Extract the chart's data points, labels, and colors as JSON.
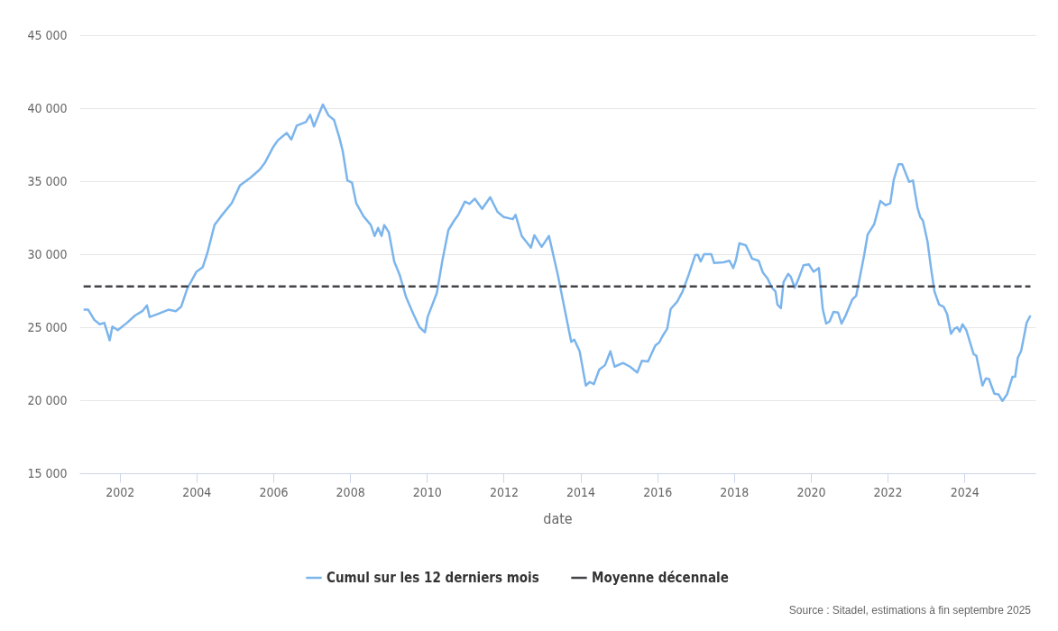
{
  "chart_data": {
    "type": "line",
    "xlabel": "date",
    "annotations": [
      "Source : Sitadel, estimations à fin septembre 2025"
    ],
    "xlim": [
      2000.95,
      2025.85
    ],
    "xticks": [
      2002,
      2004,
      2006,
      2008,
      2010,
      2012,
      2014,
      2016,
      2018,
      2020,
      2022,
      2024
    ],
    "ylim": [
      15000,
      45000
    ],
    "yticks": [
      {
        "value": 15000,
        "label": "15 000"
      },
      {
        "value": 20000,
        "label": "20 000"
      },
      {
        "value": 25000,
        "label": "25 000"
      },
      {
        "value": 30000,
        "label": "30 000"
      },
      {
        "value": 35000,
        "label": "35 000"
      },
      {
        "value": 40000,
        "label": "40 000"
      },
      {
        "value": 45000,
        "label": "45 000"
      }
    ],
    "grid": "y",
    "legend": "bottom",
    "series": [
      {
        "name": "Cumul sur les 12 derniers mois",
        "color": "#7cb5ec",
        "line_style": "solid",
        "x": [
          2001.06,
          2001.18,
          2001.34,
          2001.48,
          2001.6,
          2001.74,
          2001.81,
          2001.95,
          2002.19,
          2002.4,
          2002.59,
          2002.71,
          2002.78,
          2002.99,
          2003.27,
          2003.46,
          2003.6,
          2003.76,
          2004.0,
          2004.16,
          2004.28,
          2004.47,
          2004.64,
          2004.92,
          2005.13,
          2005.41,
          2005.65,
          2005.79,
          2006.0,
          2006.12,
          2006.35,
          2006.47,
          2006.61,
          2006.85,
          2006.96,
          2007.06,
          2007.29,
          2007.44,
          2007.58,
          2007.72,
          2007.81,
          2007.93,
          2008.05,
          2008.16,
          2008.35,
          2008.54,
          2008.64,
          2008.73,
          2008.82,
          2008.89,
          2009.01,
          2009.15,
          2009.29,
          2009.46,
          2009.65,
          2009.81,
          2009.95,
          2010.02,
          2010.26,
          2010.4,
          2010.56,
          2010.71,
          2010.82,
          2010.99,
          2011.11,
          2011.25,
          2011.44,
          2011.65,
          2011.84,
          2012.0,
          2012.24,
          2012.31,
          2012.47,
          2012.71,
          2012.8,
          2012.99,
          2013.18,
          2013.41,
          2013.6,
          2013.76,
          2013.84,
          2013.98,
          2014.14,
          2014.24,
          2014.35,
          2014.49,
          2014.64,
          2014.78,
          2014.89,
          2015.11,
          2015.29,
          2015.48,
          2015.6,
          2015.76,
          2015.95,
          2016.05,
          2016.14,
          2016.26,
          2016.35,
          2016.52,
          2016.66,
          2016.82,
          2016.99,
          2017.06,
          2017.13,
          2017.22,
          2017.41,
          2017.48,
          2017.72,
          2017.88,
          2017.98,
          2018.05,
          2018.14,
          2018.31,
          2018.47,
          2018.64,
          2018.75,
          2018.87,
          2018.99,
          2019.08,
          2019.13,
          2019.22,
          2019.29,
          2019.41,
          2019.48,
          2019.58,
          2019.67,
          2019.81,
          2019.95,
          2020.07,
          2020.21,
          2020.31,
          2020.4,
          2020.49,
          2020.59,
          2020.71,
          2020.8,
          2020.89,
          2021.08,
          2021.18,
          2021.29,
          2021.39,
          2021.48,
          2021.65,
          2021.81,
          2021.95,
          2022.07,
          2022.16,
          2022.28,
          2022.38,
          2022.56,
          2022.66,
          2022.78,
          2022.85,
          2022.92,
          2023.04,
          2023.13,
          2023.22,
          2023.34,
          2023.46,
          2023.55,
          2023.65,
          2023.74,
          2023.81,
          2023.88,
          2023.95,
          2024.05,
          2024.24,
          2024.31,
          2024.47,
          2024.56,
          2024.64,
          2024.78,
          2024.89,
          2024.99,
          2025.11,
          2025.25,
          2025.32,
          2025.39,
          2025.48,
          2025.62,
          2025.72
        ],
        "values": [
          26200,
          26200,
          25500,
          25200,
          25300,
          24100,
          25050,
          24800,
          25300,
          25800,
          26100,
          26500,
          25700,
          25900,
          26200,
          26100,
          26400,
          27650,
          28800,
          29100,
          30050,
          32000,
          32600,
          33500,
          34700,
          35250,
          35800,
          36300,
          37350,
          37800,
          38300,
          37850,
          38800,
          39050,
          39550,
          38750,
          40250,
          39500,
          39200,
          38000,
          37050,
          35050,
          34900,
          33500,
          32600,
          32000,
          31250,
          31800,
          31250,
          32000,
          31500,
          29500,
          28600,
          27050,
          25900,
          25000,
          24650,
          25700,
          27350,
          29500,
          31650,
          32300,
          32700,
          33600,
          33450,
          33800,
          33100,
          33900,
          32900,
          32550,
          32400,
          32700,
          31250,
          30450,
          31300,
          30500,
          31250,
          28600,
          26100,
          24000,
          24150,
          23350,
          21000,
          21250,
          21100,
          22100,
          22400,
          23350,
          22300,
          22550,
          22300,
          21900,
          22700,
          22650,
          23750,
          23950,
          24400,
          24900,
          26250,
          26750,
          27450,
          28600,
          29950,
          29950,
          29500,
          30000,
          30000,
          29400,
          29450,
          29550,
          29050,
          29600,
          30750,
          30600,
          29700,
          29550,
          28750,
          28350,
          27700,
          27450,
          26550,
          26300,
          28100,
          28650,
          28450,
          27700,
          28250,
          29250,
          29300,
          28800,
          29050,
          26250,
          25250,
          25400,
          26050,
          26000,
          25250,
          25700,
          26900,
          27150,
          28600,
          29950,
          31350,
          32050,
          33650,
          33350,
          33500,
          35100,
          36150,
          36150,
          34950,
          35050,
          33150,
          32550,
          32300,
          30850,
          29050,
          27450,
          26550,
          26400,
          25900,
          24550,
          24900,
          25000,
          24700,
          25200,
          24800,
          23150,
          23050,
          21000,
          21500,
          21450,
          20450,
          20400,
          19950,
          20400,
          21600,
          21600,
          22900,
          23400,
          25300,
          25800
        ]
      },
      {
        "name": "Moyenne décennale",
        "color": "#434348",
        "line_style": "dashed",
        "x": [
          2001.06,
          2025.72
        ],
        "values": [
          27800,
          27800
        ]
      }
    ]
  }
}
